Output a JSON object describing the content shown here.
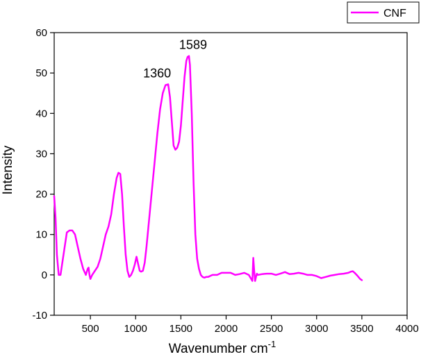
{
  "chart_data": {
    "type": "line",
    "title": "",
    "xlabel": "Wavenumber cm",
    "xlabel_superscript": "-1",
    "ylabel": "Intensity",
    "xlim": [
      100,
      4000
    ],
    "ylim": [
      -10,
      60
    ],
    "xticks": [
      500,
      1000,
      1500,
      2000,
      2500,
      3000,
      3500,
      4000
    ],
    "yticks": [
      -10,
      0,
      10,
      20,
      30,
      40,
      50,
      60
    ],
    "grid": false,
    "legend": {
      "placement": "top-right",
      "entries": [
        "CNF"
      ]
    },
    "annotations": [
      {
        "text": "1360",
        "x": 1360,
        "y": 47.2
      },
      {
        "text": "1589",
        "x": 1589,
        "y": 54.2
      }
    ],
    "series": [
      {
        "name": "CNF",
        "color": "#ff00ff",
        "x": [
          100,
          115,
          130,
          150,
          170,
          190,
          210,
          240,
          270,
          300,
          330,
          360,
          390,
          420,
          450,
          470,
          480,
          490,
          500,
          520,
          550,
          580,
          610,
          640,
          670,
          700,
          730,
          760,
          790,
          810,
          830,
          850,
          870,
          890,
          910,
          930,
          950,
          970,
          990,
          1010,
          1030,
          1045,
          1060,
          1080,
          1100,
          1120,
          1150,
          1180,
          1210,
          1240,
          1270,
          1300,
          1330,
          1360,
          1380,
          1400,
          1420,
          1440,
          1460,
          1480,
          1500,
          1520,
          1540,
          1560,
          1575,
          1589,
          1600,
          1620,
          1640,
          1660,
          1680,
          1700,
          1720,
          1740,
          1760,
          1780,
          1800,
          1850,
          1900,
          1950,
          2000,
          2050,
          2100,
          2150,
          2200,
          2250,
          2290,
          2300,
          2310,
          2320,
          2330,
          2340,
          2350,
          2400,
          2450,
          2500,
          2550,
          2600,
          2650,
          2700,
          2750,
          2800,
          2850,
          2900,
          2950,
          3000,
          3050,
          3100,
          3150,
          3200,
          3250,
          3300,
          3350,
          3380,
          3400,
          3420,
          3450,
          3480,
          3500
        ],
        "y": [
          19.5,
          14,
          5,
          0,
          0,
          3,
          6,
          10.5,
          11,
          11,
          10,
          7,
          4,
          1.5,
          0,
          1.5,
          1.8,
          0,
          -1,
          0,
          1,
          2,
          4,
          7,
          10,
          12,
          15,
          20,
          24,
          25.3,
          25,
          20,
          12,
          5,
          1,
          -0.5,
          0,
          1,
          2.5,
          4.5,
          2.5,
          1,
          0.8,
          1,
          3,
          7,
          14,
          21,
          28,
          35,
          41,
          45,
          47,
          47.2,
          44,
          38,
          32,
          31,
          31.5,
          33,
          37,
          43,
          49,
          53,
          54,
          54.2,
          52,
          40,
          23,
          10,
          4,
          1.5,
          0,
          -0.5,
          -0.7,
          -0.5,
          -0.5,
          0,
          0,
          0.5,
          0.5,
          0.5,
          0,
          0.2,
          0.5,
          0,
          -1.5,
          4.2,
          1,
          -1.5,
          -0.5,
          0.3,
          0,
          0.2,
          0.3,
          0.3,
          0,
          0.3,
          0.7,
          0.2,
          0.3,
          0.5,
          0.3,
          0,
          0,
          -0.3,
          -0.8,
          -0.5,
          -0.2,
          0,
          0.2,
          0.3,
          0.5,
          0.8,
          0.9,
          0.5,
          -0.2,
          -1,
          -1.3
        ]
      }
    ]
  }
}
